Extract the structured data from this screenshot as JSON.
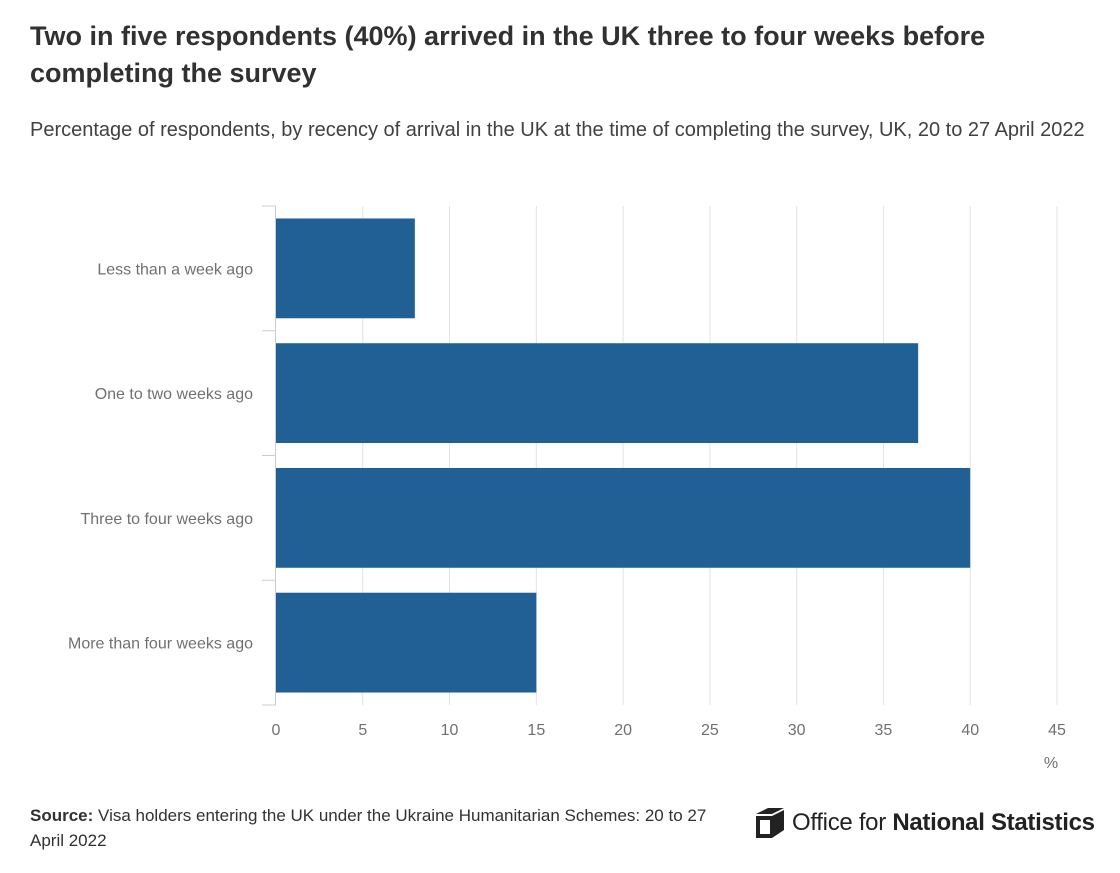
{
  "title": "Two in five respondents (40%) arrived in the UK three to four weeks before completing the survey",
  "subtitle": "Percentage of respondents, by recency of arrival in the UK at the time of completing the survey, UK, 20 to 27 April 2022",
  "source": {
    "label": "Source:",
    "text": "Visa holders entering the UK under the Ukraine Humanitarian Schemes: 20 to 27 April 2022"
  },
  "logo": {
    "icon": "ons-logo-icon",
    "text_light": "Office for",
    "text_strong": "National Statistics"
  },
  "colors": {
    "bar": "#206095",
    "grid": "#e3e3e3",
    "axis": "#cccccc",
    "label": "#707071"
  },
  "chart_data": {
    "type": "bar",
    "orientation": "horizontal",
    "categories": [
      "Less than a week ago",
      "One to two weeks ago",
      "Three to four weeks ago",
      "More than four weeks ago"
    ],
    "values": [
      8,
      37,
      40,
      15
    ],
    "xlabel": "%",
    "xlim": [
      0,
      45
    ],
    "xticks": [
      0,
      5,
      10,
      15,
      20,
      25,
      30,
      35,
      40,
      45
    ],
    "grid": true,
    "legend": "none"
  }
}
